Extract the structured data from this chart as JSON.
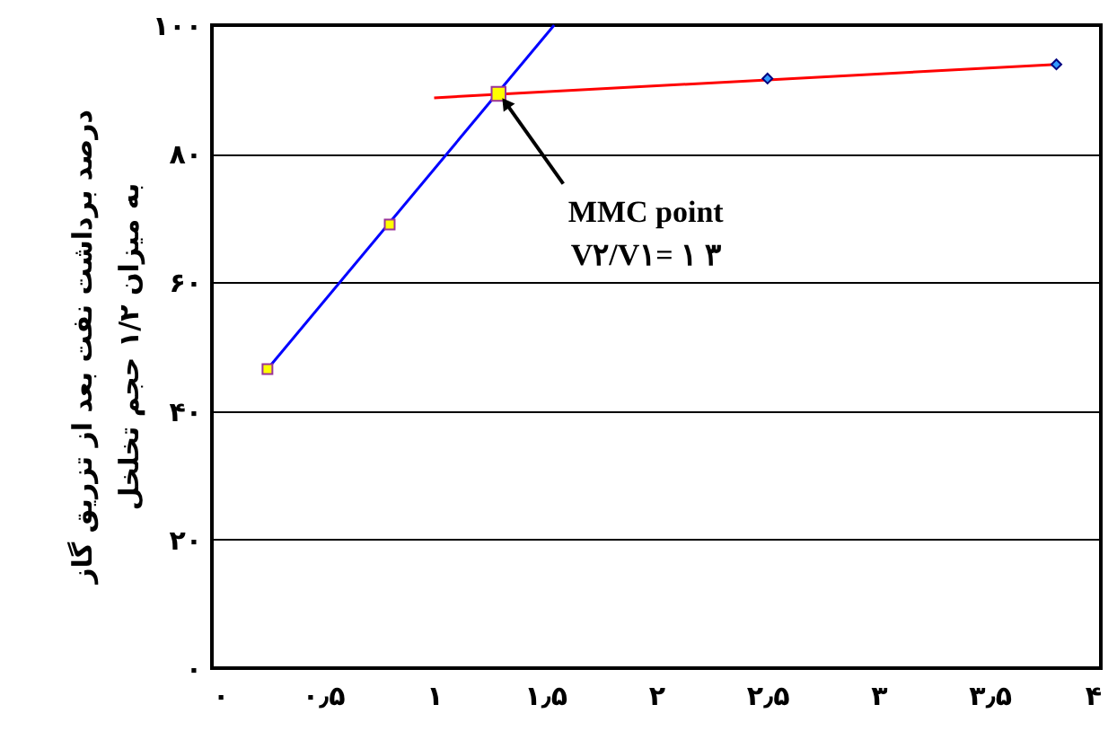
{
  "chart_data": {
    "type": "line",
    "ylabel": "درصد برداشت نفت بعد از تزریق گاز\nبه میزان ۱/۲ حجم تخلخل",
    "xlim": [
      0,
      4
    ],
    "ylim": [
      0,
      100
    ],
    "xticks": [
      {
        "value": 0,
        "label": "۰"
      },
      {
        "value": 0.5,
        "label": "۰٫۵"
      },
      {
        "value": 1,
        "label": "۱"
      },
      {
        "value": 1.5,
        "label": "۱٫۵"
      },
      {
        "value": 2,
        "label": "۲"
      },
      {
        "value": 2.5,
        "label": "۲٫۵"
      },
      {
        "value": 3,
        "label": "۳"
      },
      {
        "value": 3.5,
        "label": "۳٫۵"
      },
      {
        "value": 4,
        "label": "۴"
      }
    ],
    "yticks": [
      {
        "value": 0,
        "label": "۰"
      },
      {
        "value": 20,
        "label": "۲۰"
      },
      {
        "value": 40,
        "label": "۴۰"
      },
      {
        "value": 60,
        "label": "۶۰"
      },
      {
        "value": 80,
        "label": "۸۰"
      },
      {
        "value": 100,
        "label": "۱۰۰"
      }
    ],
    "grid": "y",
    "series": [
      {
        "color": "#0000ff",
        "x": [
          0.25,
          1.54
        ],
        "values": [
          46.5,
          100
        ],
        "marker": "none"
      },
      {
        "color": "#ff0000",
        "x": [
          1.0,
          3.8
        ],
        "values": [
          88.7,
          93.9
        ],
        "marker": "none"
      },
      {
        "type": "scatter",
        "color": "#ffff00",
        "x": [
          0.25,
          0.8
        ],
        "values": [
          46.5,
          69
        ],
        "marker": "square"
      },
      {
        "type": "scatter",
        "color": "#3399ff",
        "x": [
          2.5,
          3.8
        ],
        "values": [
          91.7,
          93.9
        ],
        "marker": "diamond"
      },
      {
        "type": "scatter",
        "color": "#ffff00",
        "x": [
          1.29
        ],
        "values": [
          89.3
        ],
        "marker": "square"
      }
    ],
    "annotations": [
      {
        "text": "MMC point",
        "x": 1.29,
        "y": 89.3
      },
      "V۲/V۱= ۱ ۳"
    ]
  }
}
